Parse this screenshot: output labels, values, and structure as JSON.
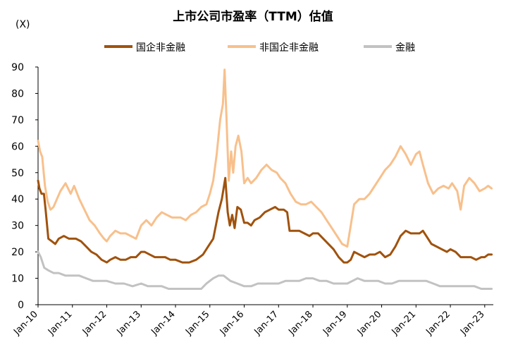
{
  "chart_data": {
    "type": "line",
    "title": "上市公司市盈率（TTM）估值",
    "unit_label": "(X)",
    "ylim": [
      0,
      90
    ],
    "yticks": [
      0,
      10,
      20,
      30,
      40,
      50,
      60,
      70,
      80,
      90
    ],
    "x_range": [
      2010.0,
      2023.25
    ],
    "xticks": [
      {
        "label": "Jan-10",
        "x": 2010
      },
      {
        "label": "Jan-11",
        "x": 2011
      },
      {
        "label": "Jan-12",
        "x": 2012
      },
      {
        "label": "Jan-13",
        "x": 2013
      },
      {
        "label": "Jan-14",
        "x": 2014
      },
      {
        "label": "Jan-15",
        "x": 2015
      },
      {
        "label": "Jan-16",
        "x": 2016
      },
      {
        "label": "Jan-17",
        "x": 2017
      },
      {
        "label": "Jan-18",
        "x": 2018
      },
      {
        "label": "Jan-19",
        "x": 2019
      },
      {
        "label": "Jan-20",
        "x": 2020
      },
      {
        "label": "Jan-21",
        "x": 2021
      },
      {
        "label": "Jan-22",
        "x": 2022
      },
      {
        "label": "Jan-23",
        "x": 2023
      }
    ],
    "grid": false,
    "legend_position": "top",
    "series": [
      {
        "name": "国企非金融",
        "color": "#a0520d",
        "points": [
          [
            2010.0,
            47
          ],
          [
            2010.04,
            44
          ],
          [
            2010.1,
            42
          ],
          [
            2010.17,
            42
          ],
          [
            2010.22,
            36
          ],
          [
            2010.3,
            25
          ],
          [
            2010.4,
            24
          ],
          [
            2010.5,
            23
          ],
          [
            2010.6,
            25
          ],
          [
            2010.75,
            26
          ],
          [
            2010.9,
            25
          ],
          [
            2011.0,
            25
          ],
          [
            2011.1,
            25
          ],
          [
            2011.25,
            24
          ],
          [
            2011.4,
            22
          ],
          [
            2011.55,
            20
          ],
          [
            2011.7,
            19
          ],
          [
            2011.85,
            17
          ],
          [
            2012.0,
            16
          ],
          [
            2012.1,
            17
          ],
          [
            2012.25,
            18
          ],
          [
            2012.4,
            17
          ],
          [
            2012.55,
            17
          ],
          [
            2012.7,
            18
          ],
          [
            2012.85,
            18
          ],
          [
            2013.0,
            20
          ],
          [
            2013.1,
            20
          ],
          [
            2013.25,
            19
          ],
          [
            2013.4,
            18
          ],
          [
            2013.55,
            18
          ],
          [
            2013.7,
            18
          ],
          [
            2013.85,
            17
          ],
          [
            2014.0,
            17
          ],
          [
            2014.2,
            16
          ],
          [
            2014.4,
            16
          ],
          [
            2014.6,
            17
          ],
          [
            2014.8,
            19
          ],
          [
            2014.95,
            22
          ],
          [
            2015.1,
            25
          ],
          [
            2015.25,
            35
          ],
          [
            2015.35,
            40
          ],
          [
            2015.45,
            48
          ],
          [
            2015.52,
            35
          ],
          [
            2015.58,
            30
          ],
          [
            2015.65,
            34
          ],
          [
            2015.72,
            29
          ],
          [
            2015.8,
            37
          ],
          [
            2015.9,
            36
          ],
          [
            2016.0,
            31
          ],
          [
            2016.1,
            31
          ],
          [
            2016.2,
            30
          ],
          [
            2016.3,
            32
          ],
          [
            2016.45,
            33
          ],
          [
            2016.6,
            35
          ],
          [
            2016.75,
            36
          ],
          [
            2016.9,
            37
          ],
          [
            2017.0,
            36
          ],
          [
            2017.15,
            36
          ],
          [
            2017.25,
            35
          ],
          [
            2017.32,
            28
          ],
          [
            2017.45,
            28
          ],
          [
            2017.6,
            28
          ],
          [
            2017.75,
            27
          ],
          [
            2017.9,
            26
          ],
          [
            2018.0,
            27
          ],
          [
            2018.15,
            27
          ],
          [
            2018.3,
            25
          ],
          [
            2018.45,
            23
          ],
          [
            2018.6,
            21
          ],
          [
            2018.75,
            18
          ],
          [
            2018.9,
            16
          ],
          [
            2019.0,
            16
          ],
          [
            2019.1,
            17
          ],
          [
            2019.2,
            20
          ],
          [
            2019.35,
            19
          ],
          [
            2019.5,
            18
          ],
          [
            2019.65,
            19
          ],
          [
            2019.8,
            19
          ],
          [
            2019.95,
            20
          ],
          [
            2020.1,
            18
          ],
          [
            2020.25,
            19
          ],
          [
            2020.4,
            22
          ],
          [
            2020.55,
            26
          ],
          [
            2020.7,
            28
          ],
          [
            2020.85,
            27
          ],
          [
            2021.0,
            27
          ],
          [
            2021.1,
            27
          ],
          [
            2021.2,
            28
          ],
          [
            2021.3,
            26
          ],
          [
            2021.45,
            23
          ],
          [
            2021.6,
            22
          ],
          [
            2021.75,
            21
          ],
          [
            2021.9,
            20
          ],
          [
            2022.0,
            21
          ],
          [
            2022.15,
            20
          ],
          [
            2022.3,
            18
          ],
          [
            2022.45,
            18
          ],
          [
            2022.6,
            18
          ],
          [
            2022.75,
            17
          ],
          [
            2022.9,
            18
          ],
          [
            2023.0,
            18
          ],
          [
            2023.1,
            19
          ],
          [
            2023.2,
            19
          ]
        ]
      },
      {
        "name": "非国企非金融",
        "color": "#f8c08c",
        "points": [
          [
            2010.0,
            62
          ],
          [
            2010.06,
            58
          ],
          [
            2010.12,
            56
          ],
          [
            2010.2,
            45
          ],
          [
            2010.28,
            39
          ],
          [
            2010.36,
            36
          ],
          [
            2010.45,
            37
          ],
          [
            2010.55,
            40
          ],
          [
            2010.65,
            43
          ],
          [
            2010.8,
            46
          ],
          [
            2010.95,
            42
          ],
          [
            2011.05,
            45
          ],
          [
            2011.2,
            40
          ],
          [
            2011.35,
            36
          ],
          [
            2011.5,
            32
          ],
          [
            2011.65,
            30
          ],
          [
            2011.8,
            27
          ],
          [
            2011.92,
            25
          ],
          [
            2012.0,
            24
          ],
          [
            2012.1,
            26
          ],
          [
            2012.25,
            28
          ],
          [
            2012.4,
            27
          ],
          [
            2012.55,
            27
          ],
          [
            2012.7,
            26
          ],
          [
            2012.85,
            25
          ],
          [
            2013.0,
            30
          ],
          [
            2013.15,
            32
          ],
          [
            2013.3,
            30
          ],
          [
            2013.45,
            33
          ],
          [
            2013.6,
            35
          ],
          [
            2013.75,
            34
          ],
          [
            2013.9,
            33
          ],
          [
            2014.0,
            33
          ],
          [
            2014.15,
            33
          ],
          [
            2014.3,
            32
          ],
          [
            2014.45,
            34
          ],
          [
            2014.6,
            35
          ],
          [
            2014.75,
            37
          ],
          [
            2014.9,
            38
          ],
          [
            2015.0,
            42
          ],
          [
            2015.1,
            47
          ],
          [
            2015.2,
            57
          ],
          [
            2015.3,
            70
          ],
          [
            2015.38,
            76
          ],
          [
            2015.43,
            89
          ],
          [
            2015.48,
            72
          ],
          [
            2015.55,
            47
          ],
          [
            2015.62,
            58
          ],
          [
            2015.68,
            50
          ],
          [
            2015.75,
            60
          ],
          [
            2015.83,
            64
          ],
          [
            2015.92,
            58
          ],
          [
            2016.0,
            46
          ],
          [
            2016.1,
            48
          ],
          [
            2016.2,
            46
          ],
          [
            2016.35,
            48
          ],
          [
            2016.5,
            51
          ],
          [
            2016.65,
            53
          ],
          [
            2016.8,
            51
          ],
          [
            2016.95,
            50
          ],
          [
            2017.05,
            48
          ],
          [
            2017.2,
            46
          ],
          [
            2017.35,
            42
          ],
          [
            2017.5,
            39
          ],
          [
            2017.65,
            38
          ],
          [
            2017.8,
            38
          ],
          [
            2017.95,
            39
          ],
          [
            2018.1,
            37
          ],
          [
            2018.25,
            35
          ],
          [
            2018.4,
            32
          ],
          [
            2018.55,
            29
          ],
          [
            2018.7,
            26
          ],
          [
            2018.85,
            23
          ],
          [
            2019.0,
            22
          ],
          [
            2019.1,
            30
          ],
          [
            2019.2,
            38
          ],
          [
            2019.35,
            40
          ],
          [
            2019.5,
            40
          ],
          [
            2019.65,
            42
          ],
          [
            2019.8,
            45
          ],
          [
            2019.95,
            48
          ],
          [
            2020.1,
            51
          ],
          [
            2020.25,
            53
          ],
          [
            2020.4,
            56
          ],
          [
            2020.55,
            60
          ],
          [
            2020.7,
            57
          ],
          [
            2020.85,
            53
          ],
          [
            2021.0,
            57
          ],
          [
            2021.1,
            58
          ],
          [
            2021.2,
            53
          ],
          [
            2021.35,
            46
          ],
          [
            2021.5,
            42
          ],
          [
            2021.65,
            44
          ],
          [
            2021.8,
            45
          ],
          [
            2021.95,
            44
          ],
          [
            2022.05,
            46
          ],
          [
            2022.2,
            43
          ],
          [
            2022.3,
            36
          ],
          [
            2022.4,
            45
          ],
          [
            2022.55,
            48
          ],
          [
            2022.7,
            46
          ],
          [
            2022.85,
            43
          ],
          [
            2023.0,
            44
          ],
          [
            2023.1,
            45
          ],
          [
            2023.2,
            44
          ]
        ]
      },
      {
        "name": "金融",
        "color": "#c2c2c2",
        "points": [
          [
            2010.0,
            20
          ],
          [
            2010.08,
            18
          ],
          [
            2010.18,
            14
          ],
          [
            2010.3,
            13
          ],
          [
            2010.45,
            12
          ],
          [
            2010.6,
            12
          ],
          [
            2010.8,
            11
          ],
          [
            2011.0,
            11
          ],
          [
            2011.2,
            11
          ],
          [
            2011.4,
            10
          ],
          [
            2011.6,
            9
          ],
          [
            2011.8,
            9
          ],
          [
            2012.0,
            9
          ],
          [
            2012.25,
            8
          ],
          [
            2012.5,
            8
          ],
          [
            2012.75,
            7
          ],
          [
            2013.0,
            8
          ],
          [
            2013.2,
            7
          ],
          [
            2013.4,
            7
          ],
          [
            2013.6,
            7
          ],
          [
            2013.8,
            6
          ],
          [
            2014.0,
            6
          ],
          [
            2014.25,
            6
          ],
          [
            2014.5,
            6
          ],
          [
            2014.75,
            6
          ],
          [
            2014.9,
            8
          ],
          [
            2015.1,
            10
          ],
          [
            2015.25,
            11
          ],
          [
            2015.4,
            11
          ],
          [
            2015.6,
            9
          ],
          [
            2015.8,
            8
          ],
          [
            2016.0,
            7
          ],
          [
            2016.2,
            7
          ],
          [
            2016.4,
            8
          ],
          [
            2016.6,
            8
          ],
          [
            2016.8,
            8
          ],
          [
            2017.0,
            8
          ],
          [
            2017.2,
            9
          ],
          [
            2017.4,
            9
          ],
          [
            2017.6,
            9
          ],
          [
            2017.8,
            10
          ],
          [
            2018.0,
            10
          ],
          [
            2018.2,
            9
          ],
          [
            2018.4,
            9
          ],
          [
            2018.6,
            8
          ],
          [
            2018.8,
            8
          ],
          [
            2019.0,
            8
          ],
          [
            2019.15,
            9
          ],
          [
            2019.3,
            10
          ],
          [
            2019.5,
            9
          ],
          [
            2019.7,
            9
          ],
          [
            2019.9,
            9
          ],
          [
            2020.1,
            8
          ],
          [
            2020.3,
            8
          ],
          [
            2020.5,
            9
          ],
          [
            2020.7,
            9
          ],
          [
            2020.9,
            9
          ],
          [
            2021.1,
            9
          ],
          [
            2021.3,
            9
          ],
          [
            2021.5,
            8
          ],
          [
            2021.7,
            7
          ],
          [
            2021.9,
            7
          ],
          [
            2022.1,
            7
          ],
          [
            2022.3,
            7
          ],
          [
            2022.5,
            7
          ],
          [
            2022.7,
            7
          ],
          [
            2022.9,
            6
          ],
          [
            2023.05,
            6
          ],
          [
            2023.2,
            6
          ]
        ]
      }
    ]
  }
}
